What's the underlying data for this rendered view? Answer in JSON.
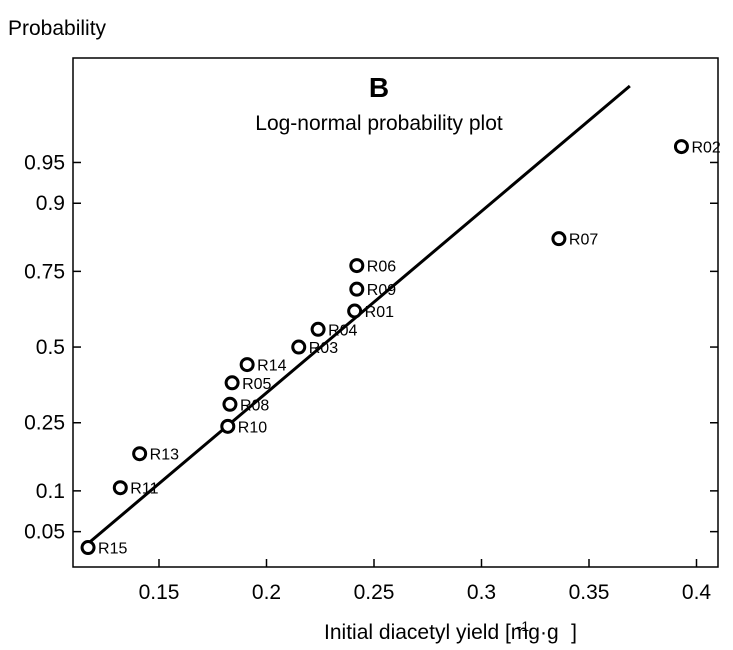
{
  "chart_data": {
    "type": "scatter",
    "panel_letter": "B",
    "title": "Log-normal probability plot",
    "ylabel": "Probability",
    "xlabel_base": "Initial diacetyl yield [mg·g",
    "xlabel_sup": "-1",
    "xlabel_end": "]",
    "xlim": [
      0.11,
      0.41
    ],
    "x_ticks": [
      0.15,
      0.2,
      0.25,
      0.3,
      0.35,
      0.4
    ],
    "x_tick_labels": [
      "0.15",
      "0.2",
      "0.25",
      "0.3",
      "0.35",
      "0.4"
    ],
    "y_ticks": [
      0.05,
      0.1,
      0.25,
      0.5,
      0.75,
      0.9,
      0.95
    ],
    "y_tick_labels": [
      "0.05",
      "0.1",
      "0.25",
      "0.5",
      "0.75",
      "0.9",
      "0.95"
    ],
    "grid": false,
    "points": [
      {
        "label": "R15",
        "x": 0.117,
        "p": 0.037
      },
      {
        "label": "R11",
        "x": 0.132,
        "p": 0.105
      },
      {
        "label": "R13",
        "x": 0.141,
        "p": 0.171
      },
      {
        "label": "R10",
        "x": 0.182,
        "p": 0.24
      },
      {
        "label": "R08",
        "x": 0.183,
        "p": 0.305
      },
      {
        "label": "R05",
        "x": 0.184,
        "p": 0.375
      },
      {
        "label": "R14",
        "x": 0.191,
        "p": 0.438
      },
      {
        "label": "R03",
        "x": 0.215,
        "p": 0.5
      },
      {
        "label": "R04",
        "x": 0.224,
        "p": 0.563
      },
      {
        "label": "R01",
        "x": 0.241,
        "p": 0.626
      },
      {
        "label": "R09",
        "x": 0.242,
        "p": 0.697
      },
      {
        "label": "R06",
        "x": 0.242,
        "p": 0.766
      },
      {
        "label": "R07",
        "x": 0.336,
        "p": 0.833
      },
      {
        "label": "R02",
        "x": 0.393,
        "p": 0.963
      }
    ],
    "fit_line": {
      "x": [
        0.117,
        0.369
      ],
      "p": [
        0.04,
        0.99
      ]
    }
  }
}
